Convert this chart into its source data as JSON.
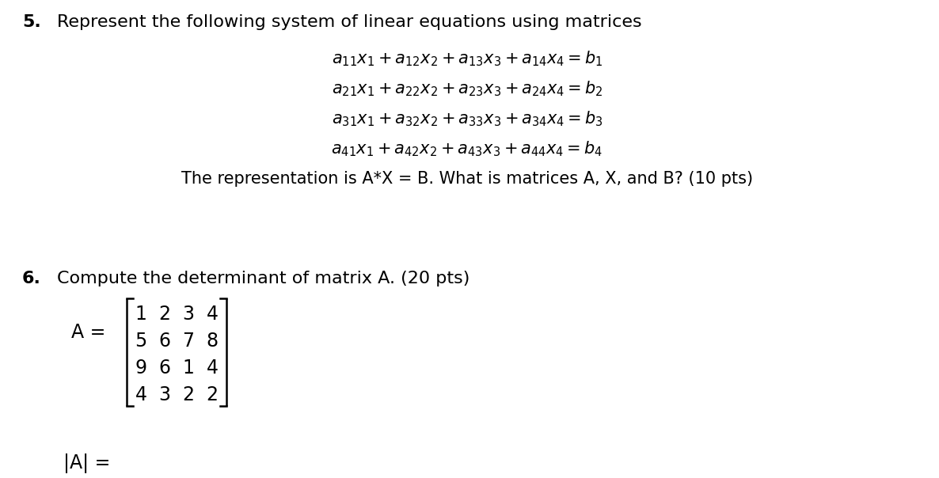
{
  "background_color": "#ffffff",
  "q5_number": "5.",
  "q5_title": "Represent the following system of linear equations using matrices",
  "equations": [
    "$a_{11}x_1 + a_{12}x_2 + a_{13}x_3 + a_{14}x_4 = b_1$",
    "$a_{21}x_1 + a_{22}x_2 + a_{23}x_3 + a_{24}x_4 = b_2$",
    "$a_{31}x_1 + a_{32}x_2 + a_{33}x_3 + a_{34}x_4 = b_3$",
    "$a_{41}x_1 + a_{42}x_2 + a_{43}x_3 + a_{44}x_4 = b_4$"
  ],
  "q5_footer": "The representation is A*X = B. What is matrices A, X, and B? (10 pts)",
  "q6_number": "6.",
  "q6_title": "Compute the determinant of matrix A. (20 pts)",
  "matrix_label": "A =",
  "matrix_rows": [
    [
      "1",
      "2",
      "3",
      "4"
    ],
    [
      "5",
      "6",
      "7",
      "8"
    ],
    [
      "9",
      "6",
      "1",
      "4"
    ],
    [
      "4",
      "3",
      "2",
      "2"
    ]
  ],
  "det_label": "|A| =",
  "text_color": "#000000",
  "fig_width": 11.86,
  "fig_height": 6.04,
  "dpi": 100
}
